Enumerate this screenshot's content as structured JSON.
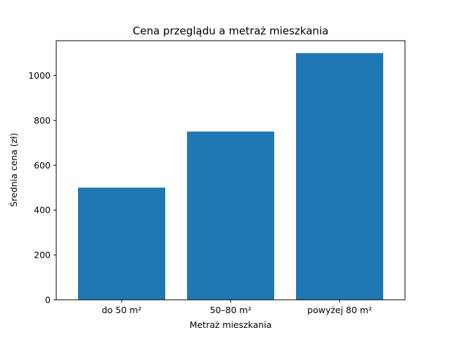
{
  "chart_data": {
    "type": "bar",
    "title": "Cena przeglądu a metraż mieszkania",
    "xlabel": "Metraż mieszkania",
    "ylabel": "Średnia cena (zł)",
    "categories": [
      "do 50 m²",
      "50–80 m²",
      "powyżej 80 m²"
    ],
    "values": [
      500,
      750,
      1100
    ],
    "ylim": [
      0,
      1155
    ],
    "yticks": [
      0,
      200,
      400,
      600,
      800,
      1000
    ],
    "ytick_labels": [
      "0",
      "200",
      "400",
      "600",
      "800",
      "1000"
    ],
    "bar_color": "#1f77b4",
    "grid": false,
    "legend": null
  }
}
